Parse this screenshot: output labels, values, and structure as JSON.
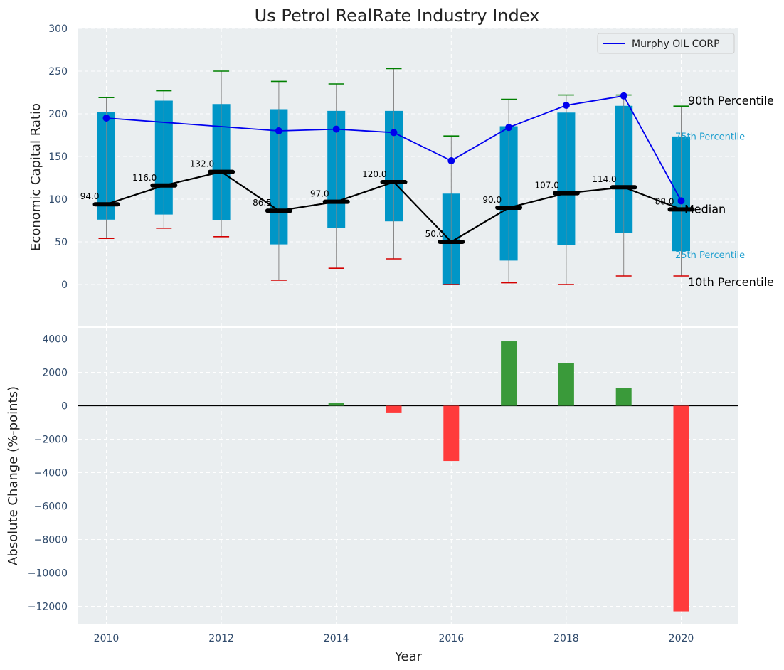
{
  "chart_data": [
    {
      "type": "box-line",
      "title": "Us Petrol RealRate Industry Index",
      "ylabel": "Economic Capital Ratio",
      "ylim": [
        -40,
        300
      ],
      "yticks": [
        0,
        50,
        100,
        150,
        200,
        250,
        300
      ],
      "years": [
        2010,
        2011,
        2012,
        2013,
        2014,
        2015,
        2016,
        2017,
        2018,
        2019,
        2020
      ],
      "p10": [
        54,
        66,
        56,
        5,
        19,
        30,
        0,
        2,
        0,
        10,
        10
      ],
      "p25": [
        76,
        82,
        75,
        47,
        66,
        74,
        0,
        28,
        46,
        60,
        39
      ],
      "median": [
        94.0,
        116.0,
        132.0,
        86.5,
        97.0,
        120.0,
        50.0,
        90.0,
        107.0,
        114.0,
        88.0
      ],
      "median_labels": [
        "94.0",
        "116.0",
        "132.0",
        "86.5",
        "97.0",
        "120.0",
        "50.0",
        "90.0",
        "107.0",
        "114.0",
        "88.0"
      ],
      "p75": [
        202,
        215,
        211,
        205,
        203,
        203,
        106,
        185,
        201,
        209,
        173
      ],
      "p90": [
        219,
        227,
        250,
        238,
        235,
        253,
        174,
        217,
        222,
        222,
        209
      ],
      "company_series": {
        "name": "Murphy OIL CORP",
        "values": [
          195,
          null,
          null,
          180,
          182,
          178,
          145,
          184,
          210,
          221,
          98
        ]
      },
      "right_labels": {
        "p90": "90th Percentile",
        "p75": "75th Percentile",
        "median": "Median",
        "p25": "25th Percentile",
        "p10": "10th Percentile"
      },
      "legend": "top-right",
      "grid": true
    },
    {
      "type": "bar",
      "ylabel": "Absolute Change (%-points)",
      "xlabel": "Year",
      "ylim": [
        -13000,
        4700
      ],
      "yticks": [
        4000,
        2000,
        0,
        -2000,
        -4000,
        -6000,
        -8000,
        -10000,
        -12000
      ],
      "categories": [
        2010,
        2011,
        2012,
        2013,
        2014,
        2015,
        2016,
        2017,
        2018,
        2019,
        2020
      ],
      "values": [
        null,
        null,
        null,
        null,
        150,
        -400,
        -3300,
        3850,
        2550,
        1050,
        -12300
      ],
      "xticks": [
        2010,
        2012,
        2014,
        2016,
        2018,
        2020
      ],
      "grid": true
    }
  ],
  "colors": {
    "panel_bg": "#eaeef0",
    "box": "#0096c7",
    "whisker": "#888888",
    "p90_cap": "#008000",
    "p10_cap": "#d40000",
    "median": "#000000",
    "company": "#0000ee",
    "bar_pos": "#3a9a3a",
    "bar_neg": "#ff3b3b"
  }
}
